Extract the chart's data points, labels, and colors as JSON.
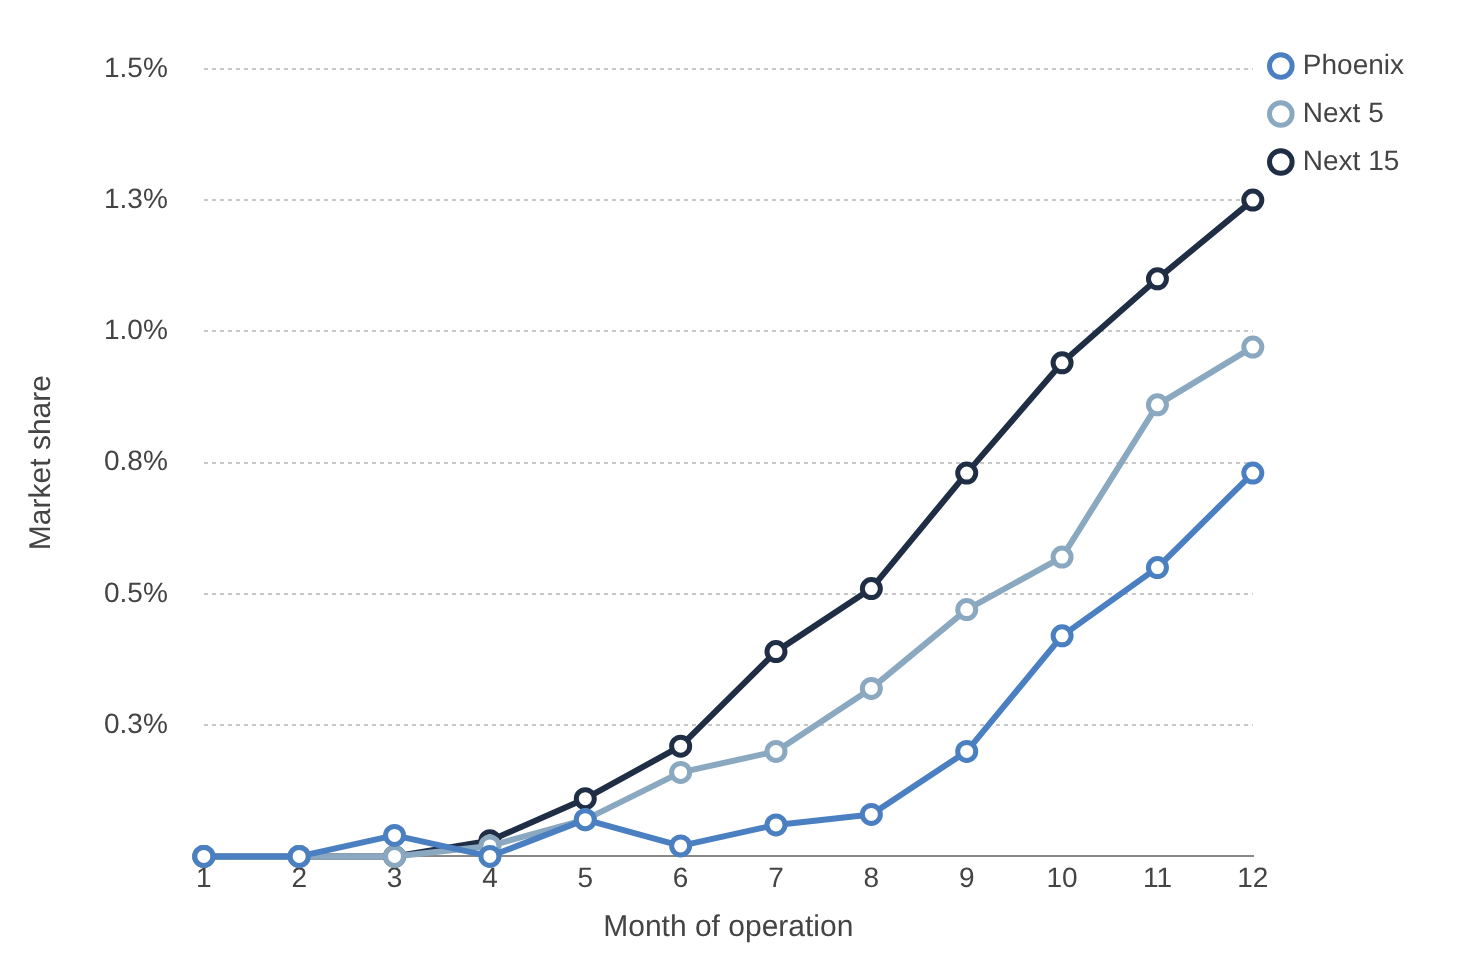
{
  "chart_data": {
    "type": "line",
    "xlabel": "Month of operation",
    "ylabel": "Market share",
    "x": [
      1,
      2,
      3,
      4,
      5,
      6,
      7,
      8,
      9,
      10,
      11,
      12
    ],
    "xlim": [
      1,
      12
    ],
    "xticks": [
      1,
      2,
      3,
      4,
      5,
      6,
      7,
      8,
      9,
      10,
      11,
      12
    ],
    "series": [
      {
        "name": "Phoenix",
        "color": "#4a7fc1",
        "values": [
          0,
          0,
          0.04,
          0,
          0.07,
          0.02,
          0.06,
          0.08,
          0.2,
          0.42,
          0.55,
          0.73
        ]
      },
      {
        "name": "Next 5",
        "color": "#8aa8bf",
        "values": [
          0,
          0,
          0,
          0.02,
          0.07,
          0.16,
          0.2,
          0.32,
          0.47,
          0.57,
          0.86,
          0.97
        ]
      },
      {
        "name": "Next 15",
        "color": "#1f2d45",
        "values": [
          0,
          0,
          0,
          0.03,
          0.11,
          0.21,
          0.39,
          0.51,
          0.73,
          0.94,
          1.1,
          1.25
        ]
      }
    ],
    "ylim": [
      0,
      1.5
    ],
    "yticks": [
      {
        "value": 0,
        "label": null
      },
      {
        "value": 0.25,
        "label": "0.3%"
      },
      {
        "value": 0.5,
        "label": "0.5%"
      },
      {
        "value": 0.75,
        "label": "0.8%"
      },
      {
        "value": 1,
        "label": "1.0%"
      },
      {
        "value": 1.25,
        "label": "1.3%"
      },
      {
        "value": 1.5,
        "label": "1.5%"
      }
    ],
    "grid": "y",
    "legend": "top right",
    "marker": "circle",
    "line_style": "solid"
  }
}
